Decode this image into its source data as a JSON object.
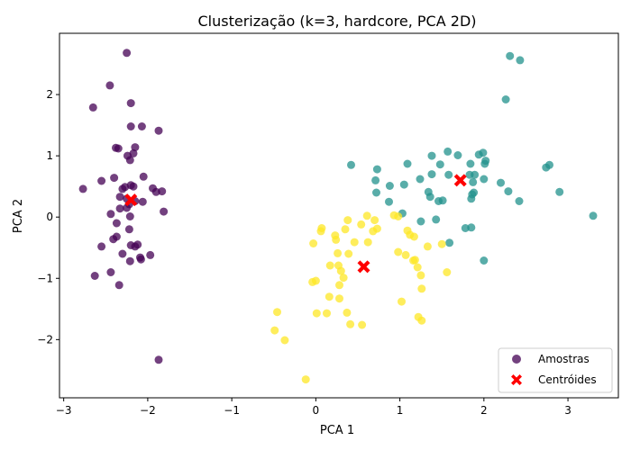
{
  "chart_data": {
    "type": "scatter",
    "title": "Clusterização (k=3, hardcore, PCA 2D)",
    "xlabel": "PCA 1",
    "ylabel": "PCA 2",
    "xlim": [
      -3.05,
      3.6
    ],
    "ylim": [
      -2.95,
      3.0
    ],
    "xticks": [
      -3,
      -2,
      -1,
      0,
      1,
      2,
      3
    ],
    "yticks": [
      -2,
      -1,
      0,
      1,
      2
    ],
    "tick_labels_x": [
      "−3",
      "−2",
      "−1",
      "0",
      "1",
      "2",
      "3"
    ],
    "tick_labels_y": [
      "−2",
      "−1",
      "0",
      "1",
      "2"
    ],
    "grid": false,
    "legend": {
      "placement": "lower-right",
      "entries": [
        "Amostras",
        "Centróides"
      ]
    },
    "colors": {
      "cluster_0": "#440154",
      "cluster_1": "#21918c",
      "cluster_2": "#fde725",
      "centroid": "#ff0000"
    },
    "series": [
      {
        "name": "Amostras",
        "points": [
          {
            "x": -2.25,
            "y": 2.68,
            "c": 0
          },
          {
            "x": -2.45,
            "y": 2.15,
            "c": 0
          },
          {
            "x": -2.65,
            "y": 1.79,
            "c": 0
          },
          {
            "x": -2.2,
            "y": 1.86,
            "c": 0
          },
          {
            "x": -2.2,
            "y": 1.48,
            "c": 0
          },
          {
            "x": -2.07,
            "y": 1.48,
            "c": 0
          },
          {
            "x": -1.87,
            "y": 1.41,
            "c": 0
          },
          {
            "x": -2.38,
            "y": 1.13,
            "c": 0
          },
          {
            "x": -2.35,
            "y": 1.12,
            "c": 0
          },
          {
            "x": -2.15,
            "y": 1.14,
            "c": 0
          },
          {
            "x": -2.17,
            "y": 1.04,
            "c": 0
          },
          {
            "x": -2.24,
            "y": 1.0,
            "c": 0
          },
          {
            "x": -2.21,
            "y": 0.93,
            "c": 0
          },
          {
            "x": -2.05,
            "y": 0.66,
            "c": 0
          },
          {
            "x": -2.4,
            "y": 0.64,
            "c": 0
          },
          {
            "x": -2.55,
            "y": 0.59,
            "c": 0
          },
          {
            "x": -2.2,
            "y": 0.52,
            "c": 0
          },
          {
            "x": -2.27,
            "y": 0.49,
            "c": 0
          },
          {
            "x": -2.3,
            "y": 0.46,
            "c": 0
          },
          {
            "x": -2.17,
            "y": 0.5,
            "c": 0
          },
          {
            "x": -1.94,
            "y": 0.47,
            "c": 0
          },
          {
            "x": -2.77,
            "y": 0.46,
            "c": 0
          },
          {
            "x": -1.83,
            "y": 0.42,
            "c": 0
          },
          {
            "x": -1.9,
            "y": 0.41,
            "c": 0
          },
          {
            "x": -2.33,
            "y": 0.33,
            "c": 0
          },
          {
            "x": -2.25,
            "y": 0.3,
            "c": 0
          },
          {
            "x": -2.15,
            "y": 0.26,
            "c": 0
          },
          {
            "x": -2.06,
            "y": 0.25,
            "c": 0
          },
          {
            "x": -2.22,
            "y": 0.21,
            "c": 0
          },
          {
            "x": -2.25,
            "y": 0.15,
            "c": 0
          },
          {
            "x": -2.33,
            "y": 0.14,
            "c": 0
          },
          {
            "x": -1.81,
            "y": 0.09,
            "c": 0
          },
          {
            "x": -2.44,
            "y": 0.05,
            "c": 0
          },
          {
            "x": -2.21,
            "y": 0.01,
            "c": 0
          },
          {
            "x": -2.37,
            "y": -0.1,
            "c": 0
          },
          {
            "x": -2.22,
            "y": -0.2,
            "c": 0
          },
          {
            "x": -2.37,
            "y": -0.32,
            "c": 0
          },
          {
            "x": -2.41,
            "y": -0.36,
            "c": 0
          },
          {
            "x": -2.2,
            "y": -0.46,
            "c": 0
          },
          {
            "x": -2.15,
            "y": -0.48,
            "c": 0
          },
          {
            "x": -2.12,
            "y": -0.45,
            "c": 0
          },
          {
            "x": -2.55,
            "y": -0.48,
            "c": 0
          },
          {
            "x": -2.3,
            "y": -0.6,
            "c": 0
          },
          {
            "x": -1.97,
            "y": -0.62,
            "c": 0
          },
          {
            "x": -2.09,
            "y": -0.66,
            "c": 0
          },
          {
            "x": -2.21,
            "y": -0.72,
            "c": 0
          },
          {
            "x": -2.08,
            "y": -0.69,
            "c": 0
          },
          {
            "x": -2.44,
            "y": -0.9,
            "c": 0
          },
          {
            "x": -2.63,
            "y": -0.96,
            "c": 0
          },
          {
            "x": -2.34,
            "y": -1.11,
            "c": 0
          },
          {
            "x": -1.87,
            "y": -2.33,
            "c": 0
          },
          {
            "x": 2.31,
            "y": 2.63,
            "c": 1
          },
          {
            "x": 2.43,
            "y": 2.56,
            "c": 1
          },
          {
            "x": 2.26,
            "y": 1.92,
            "c": 1
          },
          {
            "x": 1.57,
            "y": 1.07,
            "c": 1
          },
          {
            "x": 1.38,
            "y": 1.0,
            "c": 1
          },
          {
            "x": 1.69,
            "y": 1.01,
            "c": 1
          },
          {
            "x": 1.94,
            "y": 1.02,
            "c": 1
          },
          {
            "x": 1.99,
            "y": 1.05,
            "c": 1
          },
          {
            "x": 2.02,
            "y": 0.92,
            "c": 1
          },
          {
            "x": 2.01,
            "y": 0.87,
            "c": 1
          },
          {
            "x": 1.84,
            "y": 0.87,
            "c": 1
          },
          {
            "x": 1.48,
            "y": 0.86,
            "c": 1
          },
          {
            "x": 1.09,
            "y": 0.87,
            "c": 1
          },
          {
            "x": 0.42,
            "y": 0.85,
            "c": 1
          },
          {
            "x": 2.78,
            "y": 0.85,
            "c": 1
          },
          {
            "x": 2.74,
            "y": 0.81,
            "c": 1
          },
          {
            "x": 0.73,
            "y": 0.78,
            "c": 1
          },
          {
            "x": 1.38,
            "y": 0.7,
            "c": 1
          },
          {
            "x": 1.58,
            "y": 0.69,
            "c": 1
          },
          {
            "x": 1.83,
            "y": 0.69,
            "c": 1
          },
          {
            "x": 1.89,
            "y": 0.69,
            "c": 1
          },
          {
            "x": 1.24,
            "y": 0.62,
            "c": 1
          },
          {
            "x": 2.0,
            "y": 0.62,
            "c": 1
          },
          {
            "x": 0.71,
            "y": 0.6,
            "c": 1
          },
          {
            "x": 1.87,
            "y": 0.57,
            "c": 1
          },
          {
            "x": 2.2,
            "y": 0.56,
            "c": 1
          },
          {
            "x": 1.05,
            "y": 0.53,
            "c": 1
          },
          {
            "x": 0.88,
            "y": 0.51,
            "c": 1
          },
          {
            "x": 1.34,
            "y": 0.41,
            "c": 1
          },
          {
            "x": 2.29,
            "y": 0.42,
            "c": 1
          },
          {
            "x": 2.9,
            "y": 0.41,
            "c": 1
          },
          {
            "x": 1.88,
            "y": 0.4,
            "c": 1
          },
          {
            "x": 1.86,
            "y": 0.37,
            "c": 1
          },
          {
            "x": 0.72,
            "y": 0.4,
            "c": 1
          },
          {
            "x": 1.36,
            "y": 0.33,
            "c": 1
          },
          {
            "x": 1.85,
            "y": 0.3,
            "c": 1
          },
          {
            "x": 1.46,
            "y": 0.26,
            "c": 1
          },
          {
            "x": 1.51,
            "y": 0.27,
            "c": 1
          },
          {
            "x": 2.42,
            "y": 0.26,
            "c": 1
          },
          {
            "x": 0.87,
            "y": 0.25,
            "c": 1
          },
          {
            "x": 1.03,
            "y": 0.06,
            "c": 1
          },
          {
            "x": 3.3,
            "y": 0.02,
            "c": 1
          },
          {
            "x": 1.25,
            "y": -0.07,
            "c": 1
          },
          {
            "x": 1.43,
            "y": -0.04,
            "c": 1
          },
          {
            "x": 1.78,
            "y": -0.18,
            "c": 1
          },
          {
            "x": 1.85,
            "y": -0.17,
            "c": 1
          },
          {
            "x": 1.59,
            "y": -0.42,
            "c": 1
          },
          {
            "x": 2.0,
            "y": -0.71,
            "c": 1
          },
          {
            "x": 0.38,
            "y": -0.05,
            "c": 2
          },
          {
            "x": 0.61,
            "y": 0.02,
            "c": 2
          },
          {
            "x": 0.93,
            "y": 0.03,
            "c": 2
          },
          {
            "x": 0.98,
            "y": 0.01,
            "c": 2
          },
          {
            "x": 0.7,
            "y": -0.05,
            "c": 2
          },
          {
            "x": 0.54,
            "y": -0.12,
            "c": 2
          },
          {
            "x": 0.73,
            "y": -0.19,
            "c": 2
          },
          {
            "x": 0.07,
            "y": -0.18,
            "c": 2
          },
          {
            "x": 0.06,
            "y": -0.23,
            "c": 2
          },
          {
            "x": 0.35,
            "y": -0.2,
            "c": 2
          },
          {
            "x": 0.68,
            "y": -0.23,
            "c": 2
          },
          {
            "x": 1.09,
            "y": -0.22,
            "c": 2
          },
          {
            "x": 1.12,
            "y": -0.29,
            "c": 2
          },
          {
            "x": 1.17,
            "y": -0.32,
            "c": 2
          },
          {
            "x": 0.23,
            "y": -0.3,
            "c": 2
          },
          {
            "x": 0.24,
            "y": -0.37,
            "c": 2
          },
          {
            "x": 0.46,
            "y": -0.41,
            "c": 2
          },
          {
            "x": 0.62,
            "y": -0.41,
            "c": 2
          },
          {
            "x": -0.03,
            "y": -0.43,
            "c": 2
          },
          {
            "x": 1.33,
            "y": -0.48,
            "c": 2
          },
          {
            "x": 1.5,
            "y": -0.44,
            "c": 2
          },
          {
            "x": 0.98,
            "y": -0.57,
            "c": 2
          },
          {
            "x": 0.26,
            "y": -0.59,
            "c": 2
          },
          {
            "x": 0.39,
            "y": -0.6,
            "c": 2
          },
          {
            "x": 1.07,
            "y": -0.62,
            "c": 2
          },
          {
            "x": 1.16,
            "y": -0.71,
            "c": 2
          },
          {
            "x": 1.18,
            "y": -0.7,
            "c": 2
          },
          {
            "x": 0.17,
            "y": -0.79,
            "c": 2
          },
          {
            "x": 0.27,
            "y": -0.79,
            "c": 2
          },
          {
            "x": 1.21,
            "y": -0.82,
            "c": 2
          },
          {
            "x": 0.3,
            "y": -0.88,
            "c": 2
          },
          {
            "x": 1.56,
            "y": -0.9,
            "c": 2
          },
          {
            "x": 1.25,
            "y": -0.95,
            "c": 2
          },
          {
            "x": 0.33,
            "y": -0.99,
            "c": 2
          },
          {
            "x": 0.0,
            "y": -1.04,
            "c": 2
          },
          {
            "x": -0.04,
            "y": -1.06,
            "c": 2
          },
          {
            "x": 0.28,
            "y": -1.11,
            "c": 2
          },
          {
            "x": 1.26,
            "y": -1.17,
            "c": 2
          },
          {
            "x": 0.16,
            "y": -1.3,
            "c": 2
          },
          {
            "x": 0.28,
            "y": -1.33,
            "c": 2
          },
          {
            "x": 1.02,
            "y": -1.38,
            "c": 2
          },
          {
            "x": -0.46,
            "y": -1.55,
            "c": 2
          },
          {
            "x": 0.01,
            "y": -1.57,
            "c": 2
          },
          {
            "x": 0.13,
            "y": -1.57,
            "c": 2
          },
          {
            "x": 0.37,
            "y": -1.56,
            "c": 2
          },
          {
            "x": 1.22,
            "y": -1.63,
            "c": 2
          },
          {
            "x": 1.26,
            "y": -1.69,
            "c": 2
          },
          {
            "x": 0.41,
            "y": -1.75,
            "c": 2
          },
          {
            "x": 0.55,
            "y": -1.76,
            "c": 2
          },
          {
            "x": -0.49,
            "y": -1.85,
            "c": 2
          },
          {
            "x": -0.37,
            "y": -2.01,
            "c": 2
          },
          {
            "x": -0.12,
            "y": -2.65,
            "c": 2
          }
        ]
      },
      {
        "name": "Centróides",
        "points": [
          {
            "x": -2.2,
            "y": 0.28
          },
          {
            "x": 1.72,
            "y": 0.6
          },
          {
            "x": 0.57,
            "y": -0.81
          }
        ]
      }
    ]
  }
}
